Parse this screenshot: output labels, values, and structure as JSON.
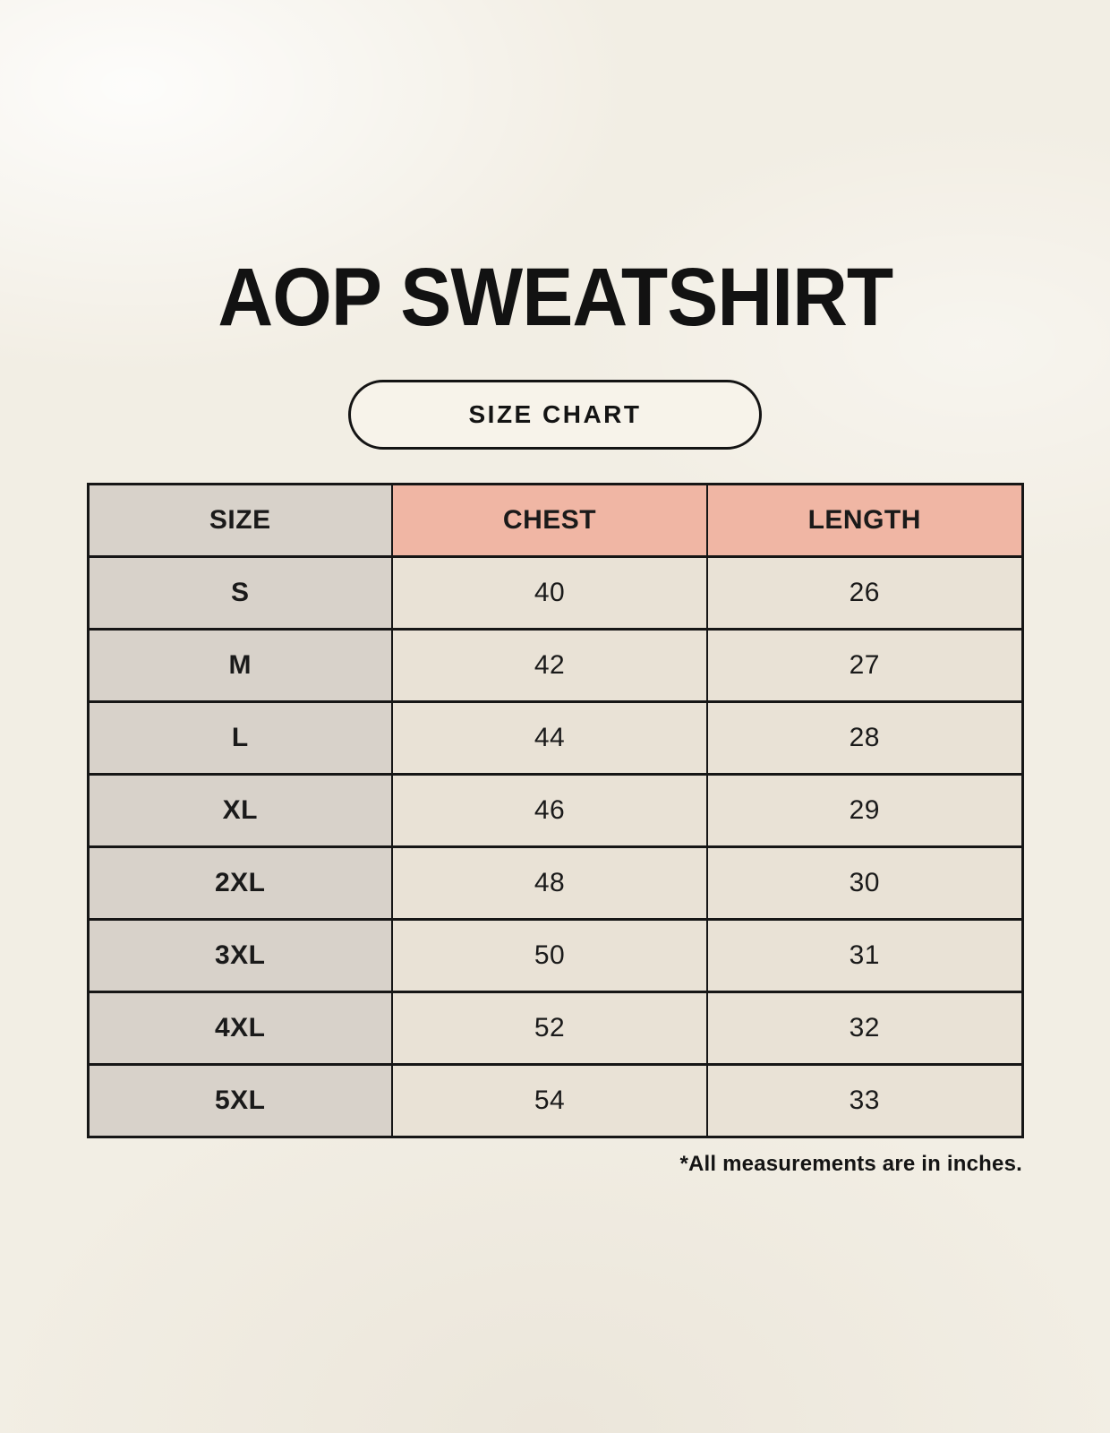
{
  "title": "AOP SWEATSHIRT",
  "badge": {
    "label": "SIZE CHART"
  },
  "footnote": "*All measurements are in inches.",
  "chart_data": {
    "type": "table",
    "title": "AOP SWEATSHIRT",
    "subtitle": "SIZE CHART",
    "columns": [
      "SIZE",
      "CHEST",
      "LENGTH"
    ],
    "rows": [
      [
        "S",
        "40",
        "26"
      ],
      [
        "M",
        "42",
        "27"
      ],
      [
        "L",
        "44",
        "28"
      ],
      [
        "XL",
        "46",
        "29"
      ],
      [
        "2XL",
        "48",
        "30"
      ],
      [
        "3XL",
        "50",
        "31"
      ],
      [
        "4XL",
        "52",
        "32"
      ],
      [
        "5XL",
        "54",
        "33"
      ]
    ],
    "note": "*All measurements are in inches.",
    "units": "inches"
  },
  "colors": {
    "background": "#f2eee4",
    "size_column_bg": "#d8d2ca",
    "measure_header_bg": "#f0b6a4",
    "value_cell_bg": "#e9e2d6",
    "border": "#161616",
    "text": "#141414"
  }
}
